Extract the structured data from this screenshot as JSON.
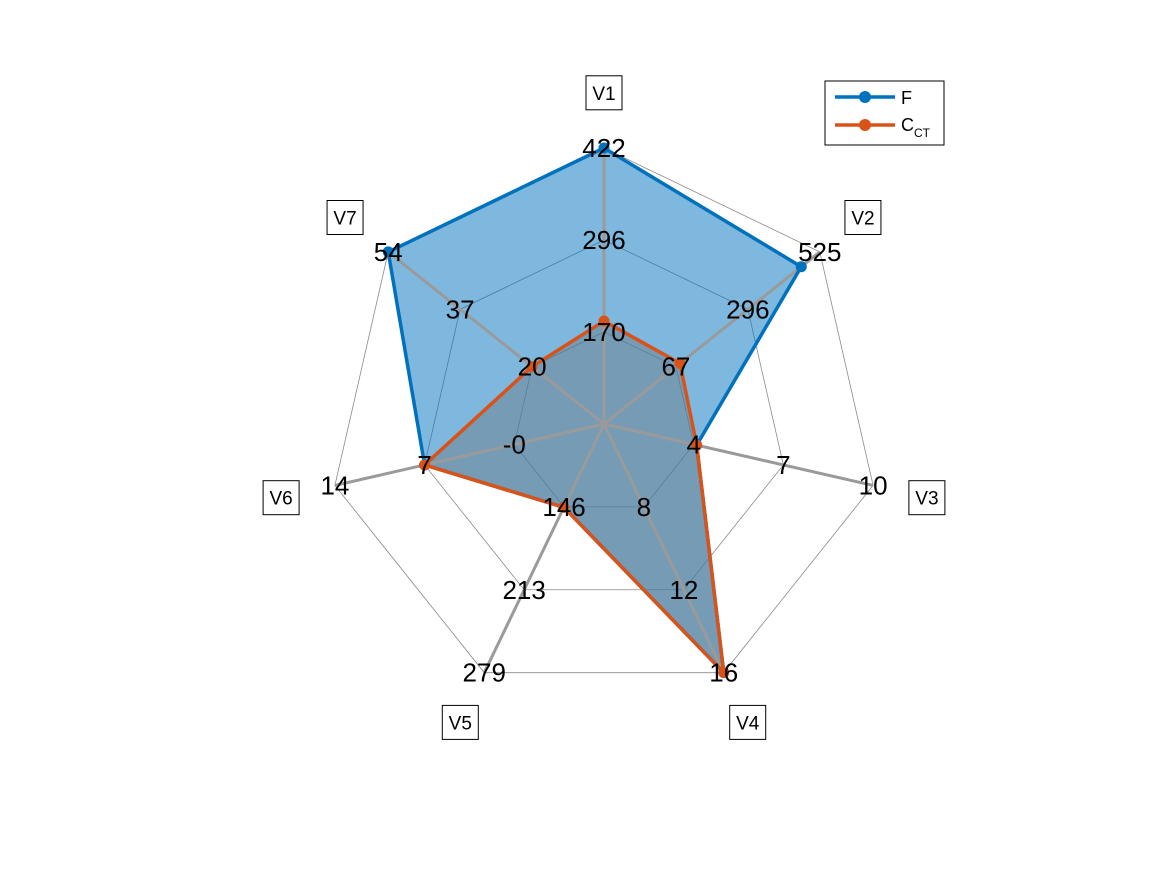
{
  "chart_data": {
    "type": "radar",
    "axes": [
      "V1",
      "V2",
      "V3",
      "V4",
      "V5",
      "V6",
      "V7"
    ],
    "axis_ticks": [
      [
        "170",
        "296",
        "422"
      ],
      [
        "67",
        "296",
        "525"
      ],
      [
        "4",
        "7",
        "10"
      ],
      [
        "8",
        "12",
        "16"
      ],
      [
        "146",
        "213",
        "279"
      ],
      [
        "-0",
        "7",
        "14"
      ],
      [
        "20",
        "37",
        "54"
      ]
    ],
    "axis_ranges": [
      [
        44,
        422
      ],
      [
        -162,
        525
      ],
      [
        1,
        10
      ],
      [
        4,
        16
      ],
      [
        79,
        279
      ],
      [
        -7,
        14
      ],
      [
        3,
        54
      ]
    ],
    "series": [
      {
        "name": "F",
        "color": "#0072BD",
        "fill": "#0072BD",
        "values": [
          422,
          466,
          4.1,
          16,
          146,
          7,
          54
        ]
      },
      {
        "name": "C",
        "name_sub": "CT",
        "color": "#D95319",
        "fill": "#6E7F8C",
        "values": [
          185,
          80,
          4.1,
          16,
          146,
          7,
          20
        ]
      }
    ],
    "legend": "top-right",
    "grid": true
  }
}
